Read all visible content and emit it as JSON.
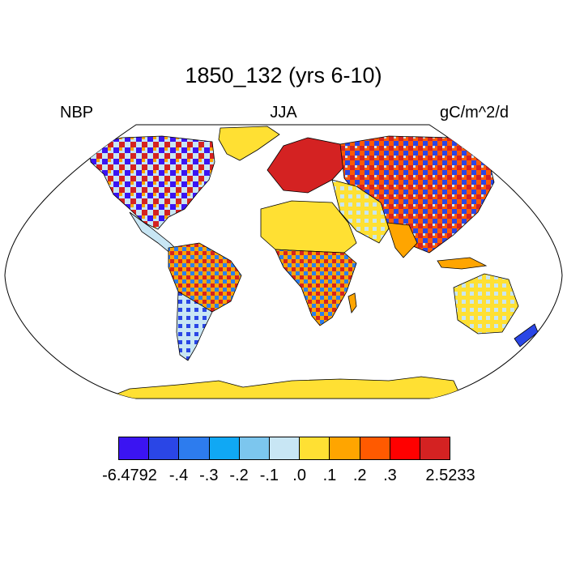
{
  "title": "1850_132 (yrs 6-10)",
  "left_label": "NBP",
  "center_label": "JJA",
  "right_label": "gC/m^2/d",
  "colorbar": {
    "colors": [
      "#3b14f2",
      "#2a46e6",
      "#2d7cee",
      "#10a8f4",
      "#7cc6ee",
      "#c8e6f4",
      "#ffe033",
      "#ffa500",
      "#ff5a00",
      "#ff0000",
      "#d42222"
    ],
    "labels": [
      "-6.4792",
      "-.4",
      "-.3",
      "-.2",
      "-.1",
      ".0",
      ".1",
      ".2",
      ".3",
      "2.5233"
    ]
  },
  "map": {
    "projection": "Robinson",
    "ocean_color": "#ffffff",
    "no_data_color": "#ffe033"
  }
}
